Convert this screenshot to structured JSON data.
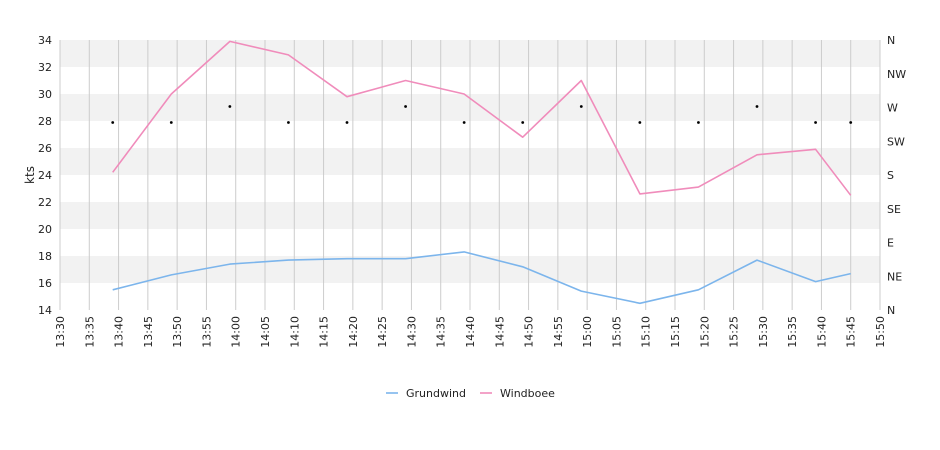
{
  "chart_data": {
    "type": "line",
    "ylabel": "kts",
    "ylim": [
      14,
      34
    ],
    "yticks": [
      14,
      16,
      18,
      20,
      22,
      24,
      26,
      28,
      30,
      32,
      34
    ],
    "xlim": [
      "13:30",
      "15:50"
    ],
    "x_tick_labels": [
      "13:30",
      "13:35",
      "13:40",
      "13:45",
      "13:50",
      "13:55",
      "14:00",
      "14:05",
      "14:10",
      "14:15",
      "14:20",
      "14:25",
      "14:30",
      "14:35",
      "14:40",
      "14:45",
      "14:50",
      "14:55",
      "15:00",
      "15:05",
      "15:10",
      "15:15",
      "15:20",
      "15:25",
      "15:30",
      "15:35",
      "15:40",
      "15:45",
      "15:50"
    ],
    "y2_tick_labels": [
      "N",
      "NE",
      "E",
      "SE",
      "S",
      "SW",
      "W",
      "NW",
      "N"
    ],
    "x": [
      "13:39",
      "13:49",
      "13:59",
      "14:09",
      "14:19",
      "14:29",
      "14:39",
      "14:49",
      "14:59",
      "15:09",
      "15:19",
      "15:29",
      "15:39",
      "15:45"
    ],
    "series": [
      {
        "name": "Grundwind",
        "color": "#7cb5ec",
        "values": [
          15.5,
          16.6,
          17.4,
          17.7,
          17.8,
          17.8,
          18.3,
          17.2,
          15.4,
          14.5,
          15.5,
          17.7,
          16.1,
          16.7
        ]
      },
      {
        "name": "Windboee",
        "color": "#f08cbb",
        "values": [
          24.2,
          30.0,
          33.9,
          32.9,
          29.8,
          31.0,
          30.0,
          26.8,
          31.0,
          22.6,
          23.1,
          25.5,
          25.9,
          22.5
        ]
      }
    ],
    "direction_markers": {
      "x": [
        "13:39",
        "13:49",
        "13:59",
        "14:09",
        "14:19",
        "14:29",
        "14:39",
        "14:49",
        "14:59",
        "15:09",
        "15:19",
        "15:29",
        "15:39",
        "15:45"
      ],
      "values": [
        "W",
        "W",
        "W",
        "W",
        "W",
        "W",
        "W",
        "W",
        "W",
        "W",
        "W",
        "W",
        "W",
        "W"
      ]
    },
    "grid": true,
    "legend": "bottom-center"
  }
}
